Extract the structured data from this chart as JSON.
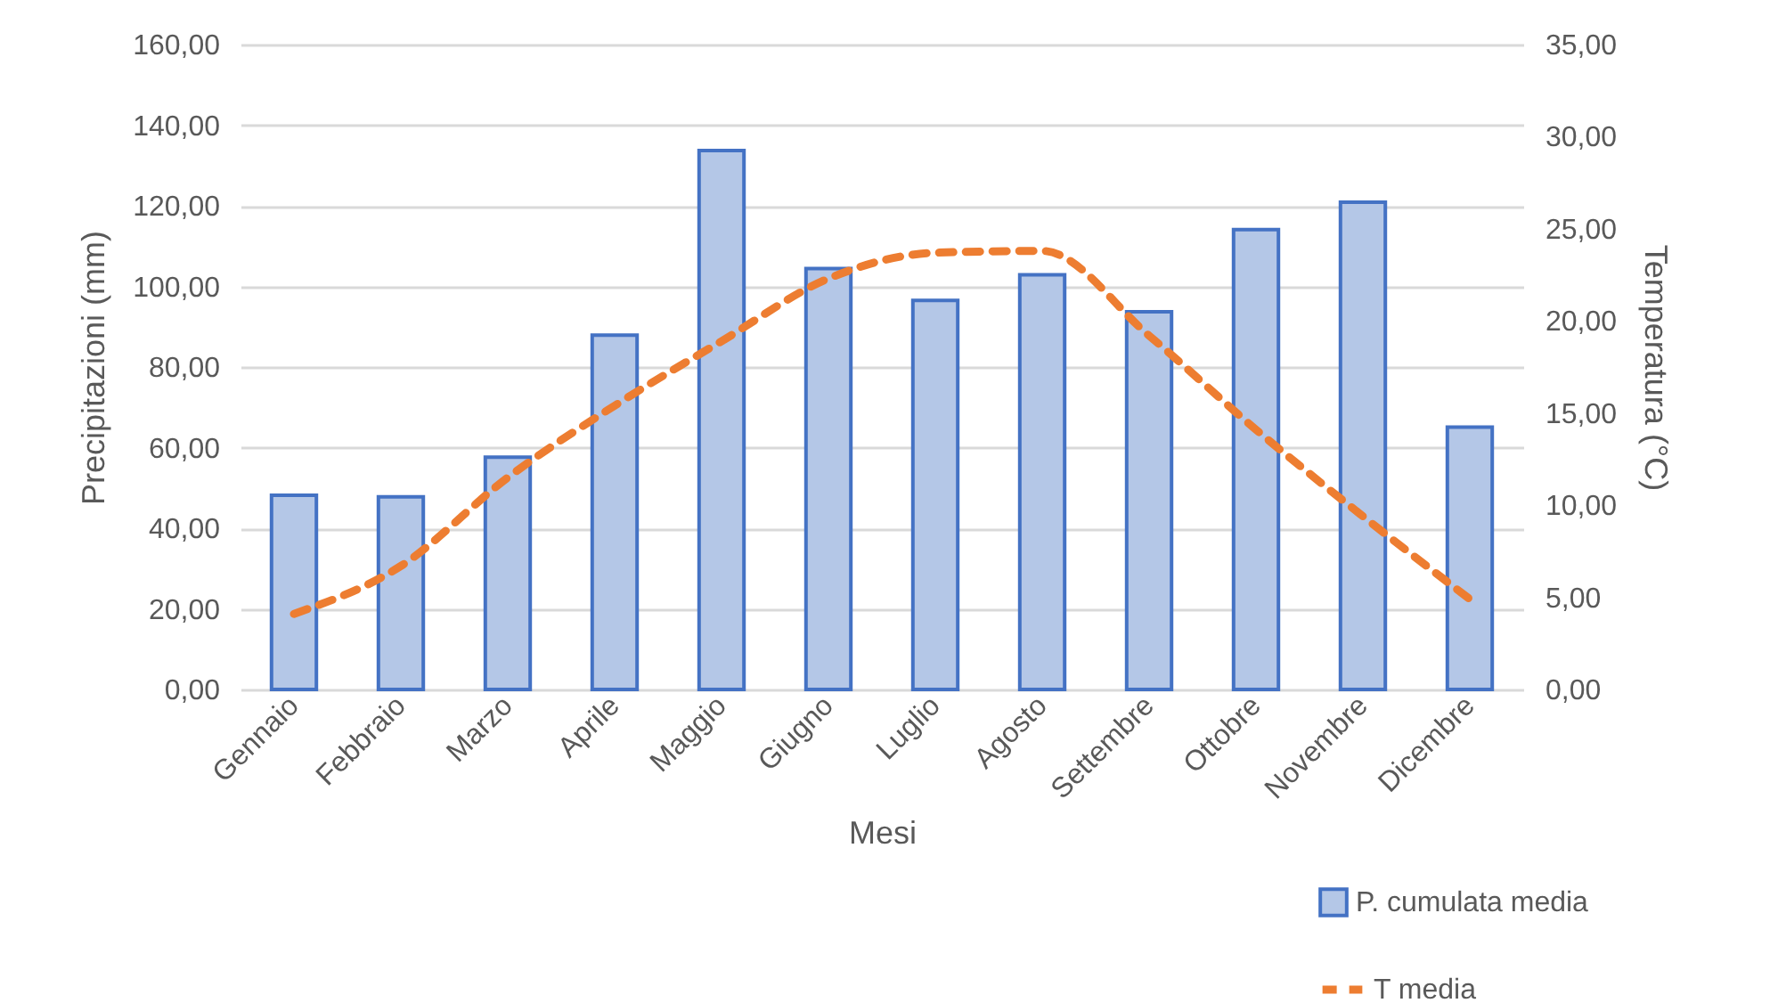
{
  "chart_data": {
    "type": "bar",
    "xlabel": "Mesi",
    "ylabel": "Precipitazioni (mm)",
    "y2label": "Temperatura (°C)",
    "categories": [
      "Gennaio",
      "Febbraio",
      "Marzo",
      "Aprile",
      "Maggio",
      "Giugno",
      "Luglio",
      "Agosto",
      "Settembre",
      "Ottobre",
      "Novembre",
      "Dicembre"
    ],
    "series": [
      {
        "name": "P. cumulata media",
        "color": "#b4c7e7",
        "values": [
          48.2,
          47.8,
          57.6,
          87.9,
          133.7,
          104.4,
          96.5,
          102.9,
          93.7,
          114.1,
          120.9,
          65.1
        ]
      },
      {
        "name": "T media",
        "type": "line",
        "axis": "y2",
        "color": "#ed7d31",
        "line_style": "dashed",
        "values": [
          4.1,
          6.7,
          11.5,
          15.4,
          18.9,
          22.3,
          23.7,
          23.8,
          19.2,
          14.1,
          9.4,
          4.9
        ]
      }
    ],
    "ylim": [
      0,
      160
    ],
    "yticks": [
      {
        "value": 0,
        "label": "0,00"
      },
      {
        "value": 20,
        "label": "20,00"
      },
      {
        "value": 40,
        "label": "40,00"
      },
      {
        "value": 60,
        "label": "60,00"
      },
      {
        "value": 80,
        "label": "80,00"
      },
      {
        "value": 100,
        "label": "100,00"
      },
      {
        "value": 120,
        "label": "120,00"
      },
      {
        "value": 140,
        "label": "140,00"
      },
      {
        "value": 160,
        "label": "160,00"
      }
    ],
    "y2lim": [
      0,
      35
    ],
    "y2ticks": [
      {
        "value": 0,
        "label": "0,00"
      },
      {
        "value": 5,
        "label": "5,00"
      },
      {
        "value": 10,
        "label": "10,00"
      },
      {
        "value": 15,
        "label": "15,00"
      },
      {
        "value": 20,
        "label": "20,00"
      },
      {
        "value": 25,
        "label": "25,00"
      },
      {
        "value": 30,
        "label": "30,00"
      },
      {
        "value": 35,
        "label": "35,00"
      }
    ],
    "grid": "y",
    "legend": "bottom right"
  }
}
